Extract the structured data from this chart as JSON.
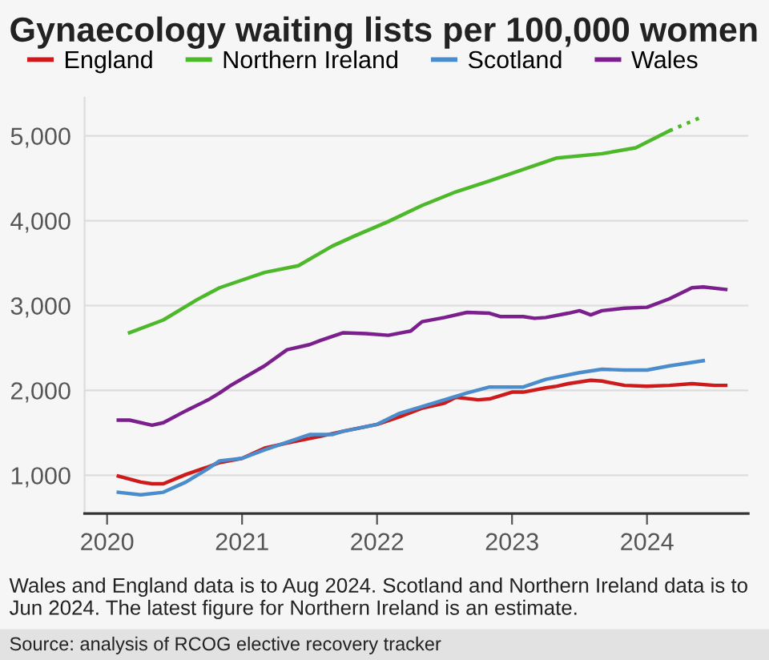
{
  "chart_data": {
    "type": "line",
    "title": "Gynaecology waiting lists per 100,000 women",
    "xlim": [
      "2019-11",
      "2024-10"
    ],
    "xticks": [
      "2020",
      "2021",
      "2022",
      "2023",
      "2024"
    ],
    "ylim": [
      550,
      5450
    ],
    "yticks": [
      {
        "value": 1000,
        "label": "1,000"
      },
      {
        "value": 2000,
        "label": "2,000"
      },
      {
        "value": 3000,
        "label": "3,000"
      },
      {
        "value": 4000,
        "label": "4,000"
      },
      {
        "value": 5000,
        "label": "5,000"
      }
    ],
    "grid": "y",
    "legend": "top left",
    "marker": "none",
    "series": [
      {
        "name": "England",
        "color": "#ce1a1a",
        "x": [
          "2020-02",
          "2020-04",
          "2020-05",
          "2020-06",
          "2020-08",
          "2020-10",
          "2020-11",
          "2021-01",
          "2021-03",
          "2021-05",
          "2021-08",
          "2021-10",
          "2022-01",
          "2022-03",
          "2022-05",
          "2022-07",
          "2022-08",
          "2022-10",
          "2022-11",
          "2023-01",
          "2023-02",
          "2023-04",
          "2023-05",
          "2023-06",
          "2023-08",
          "2023-09",
          "2023-11",
          "2024-01",
          "2024-03",
          "2024-05",
          "2024-07",
          "2024-08"
        ],
        "values": [
          990,
          920,
          900,
          900,
          1010,
          1100,
          1150,
          1200,
          1320,
          1380,
          1460,
          1520,
          1600,
          1690,
          1790,
          1850,
          1920,
          1890,
          1900,
          1980,
          1980,
          2030,
          2050,
          2080,
          2120,
          2110,
          2060,
          2050,
          2060,
          2080,
          2060,
          2060
        ]
      },
      {
        "name": "Northern Ireland",
        "color": "#4cb82a",
        "x": [
          "2020-03",
          "2020-06",
          "2020-09",
          "2020-11",
          "2021-03",
          "2021-06",
          "2021-09",
          "2021-11",
          "2022-02",
          "2022-05",
          "2022-08",
          "2022-11",
          "2023-05",
          "2023-09",
          "2023-12",
          "2024-03"
        ],
        "values": [
          2680,
          2830,
          3070,
          3210,
          3390,
          3470,
          3700,
          3820,
          3990,
          4180,
          4340,
          4470,
          4740,
          4790,
          4860,
          5060
        ]
      },
      {
        "color": "#4cb82a",
        "line_style": "dotted",
        "x": [
          "2024-03",
          "2024-06"
        ],
        "values": [
          5060,
          5230
        ]
      },
      {
        "name": "Scotland",
        "color": "#4a8ccc",
        "x": [
          "2020-02",
          "2020-04",
          "2020-06",
          "2020-08",
          "2020-10",
          "2020-11",
          "2021-01",
          "2021-03",
          "2021-05",
          "2021-07",
          "2021-09",
          "2021-10",
          "2022-01",
          "2022-03",
          "2022-05",
          "2022-07",
          "2022-09",
          "2022-11",
          "2023-02",
          "2023-04",
          "2023-07",
          "2023-09",
          "2023-11",
          "2024-01",
          "2024-03",
          "2024-05",
          "2024-06"
        ],
        "values": [
          800,
          770,
          800,
          920,
          1080,
          1170,
          1200,
          1300,
          1390,
          1480,
          1480,
          1520,
          1600,
          1730,
          1810,
          1890,
          1970,
          2040,
          2040,
          2130,
          2210,
          2250,
          2240,
          2240,
          2290,
          2330,
          2350
        ]
      },
      {
        "name": "Wales",
        "color": "#7a1f8c",
        "x": [
          "2020-02",
          "2020-03",
          "2020-05",
          "2020-06",
          "2020-08",
          "2020-10",
          "2020-11",
          "2020-12",
          "2021-03",
          "2021-05",
          "2021-07",
          "2021-08",
          "2021-10",
          "2021-12",
          "2022-02",
          "2022-04",
          "2022-05",
          "2022-07",
          "2022-09",
          "2022-11",
          "2022-12",
          "2023-02",
          "2023-03",
          "2023-04",
          "2023-06",
          "2023-07",
          "2023-08",
          "2023-09",
          "2023-11",
          "2024-01",
          "2024-03",
          "2024-05",
          "2024-06",
          "2024-08"
        ],
        "values": [
          1650,
          1650,
          1590,
          1620,
          1760,
          1890,
          1970,
          2060,
          2290,
          2480,
          2540,
          2590,
          2680,
          2670,
          2650,
          2700,
          2810,
          2860,
          2920,
          2910,
          2870,
          2870,
          2850,
          2860,
          2910,
          2940,
          2890,
          2940,
          2970,
          2980,
          3080,
          3210,
          3220,
          3190
        ]
      }
    ],
    "annotations": [
      "Wales and England data is to Aug 2024. Scotland and Northern Ireland data is to Jun 2024. The latest figure for Northern Ireland is an estimate.",
      "Source: analysis of RCOG elective recovery tracker"
    ]
  }
}
